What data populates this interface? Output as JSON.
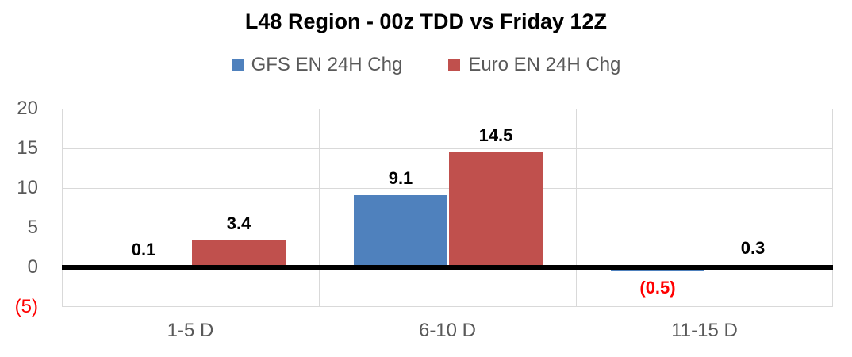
{
  "chart_data": {
    "type": "bar",
    "title": "L48 Region - 00z TDD vs Friday 12Z",
    "categories": [
      "1-5 D",
      "6-10 D",
      "11-15 D"
    ],
    "series": [
      {
        "name": "GFS EN 24H Chg",
        "color": "#4F81BD",
        "values": [
          0.1,
          9.1,
          -0.5
        ],
        "data_labels": [
          "0.1",
          "9.1",
          "(0.5)"
        ]
      },
      {
        "name": "Euro EN 24H Chg",
        "color": "#C0504D",
        "values": [
          3.4,
          14.5,
          0.3
        ],
        "data_labels": [
          "3.4",
          "14.5",
          "0.3"
        ]
      }
    ],
    "ylim": [
      -5,
      20
    ],
    "yticks": [
      20,
      15,
      10,
      5,
      0,
      -5
    ],
    "ytick_labels": [
      "20",
      "15",
      "10",
      "5",
      "0",
      "(5)"
    ],
    "grid": true,
    "legend_position": "top",
    "styles": {
      "data_label_color": "#000000",
      "negative_text_color": "#FF0000",
      "axis_text_color": "#595959",
      "gridline_color": "#D9D9D9",
      "zero_line_color": "#000000",
      "background_color": "#FFFFFF"
    }
  }
}
